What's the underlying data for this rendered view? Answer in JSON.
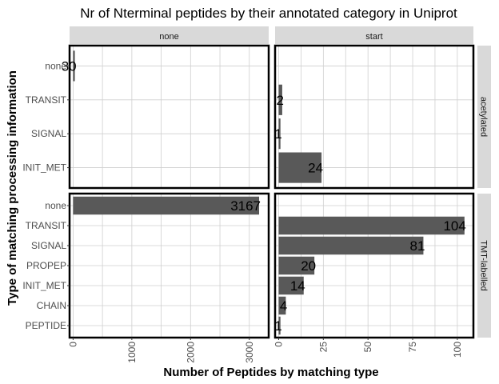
{
  "chart_data": {
    "type": "bar",
    "orientation": "horizontal",
    "title": "Nr of Nterminal peptides by their annotated category in Uniprot",
    "xlabel": "Number of Peptides by matching type",
    "ylabel": "Type of matching processing information",
    "columns": [
      "none",
      "start"
    ],
    "rows": [
      "acetylated",
      "TMT-labelled"
    ],
    "x_axes": {
      "none": {
        "ticks": [
          0,
          1000,
          2000,
          3000
        ],
        "tick_labels": [
          "0",
          "1000",
          "2000",
          "3000"
        ],
        "xlim": [
          -60,
          3330
        ]
      },
      "start": {
        "ticks": [
          0,
          25,
          50,
          75,
          100
        ],
        "tick_labels": [
          "0",
          "25",
          "50",
          "75",
          "100"
        ],
        "xlim": [
          -2,
          109
        ]
      }
    },
    "y_axes": {
      "acetylated": {
        "categories": [
          "none",
          "TRANSIT",
          "SIGNAL",
          "INIT_MET"
        ]
      },
      "TMT-labelled": {
        "categories": [
          "none",
          "TRANSIT",
          "SIGNAL",
          "PROPEP",
          "INIT_MET",
          "CHAIN",
          "PEPTIDE"
        ]
      }
    },
    "panels": [
      {
        "row": "acetylated",
        "column": "none",
        "bars": [
          {
            "category": "none",
            "value": 30
          }
        ]
      },
      {
        "row": "acetylated",
        "column": "start",
        "bars": [
          {
            "category": "TRANSIT",
            "value": 2
          },
          {
            "category": "SIGNAL",
            "value": 1
          },
          {
            "category": "INIT_MET",
            "value": 24
          }
        ]
      },
      {
        "row": "TMT-labelled",
        "column": "none",
        "bars": [
          {
            "category": "none",
            "value": 3167
          }
        ]
      },
      {
        "row": "TMT-labelled",
        "column": "start",
        "bars": [
          {
            "category": "TRANSIT",
            "value": 104
          },
          {
            "category": "SIGNAL",
            "value": 81
          },
          {
            "category": "PROPEP",
            "value": 20
          },
          {
            "category": "INIT_MET",
            "value": 14
          },
          {
            "category": "CHAIN",
            "value": 4
          },
          {
            "category": "PEPTIDE",
            "value": 1
          }
        ]
      }
    ],
    "grid": true,
    "legend": "none",
    "colors": {
      "bar": "#595959",
      "panel_border": "#000000",
      "strip_background": "#d9d9d9",
      "grid": "#cfcfcf"
    }
  }
}
